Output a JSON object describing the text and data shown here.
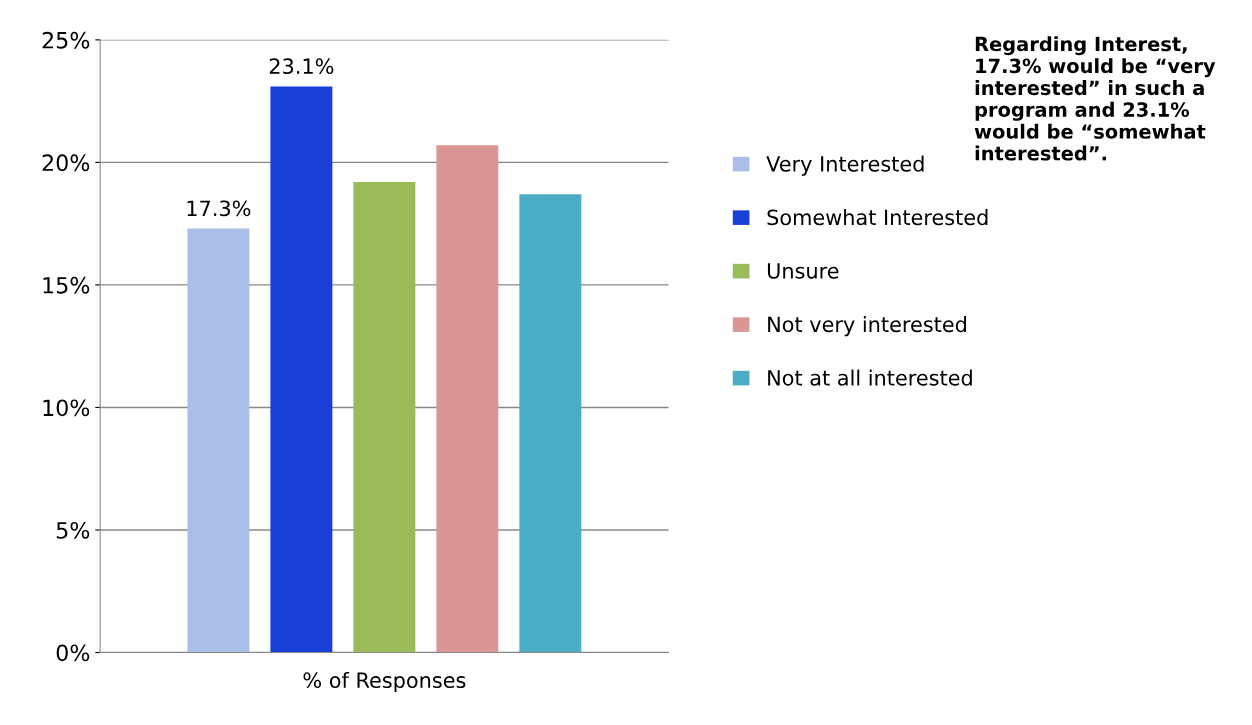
{
  "chart_data": {
    "type": "bar",
    "categories": [
      "% of Responses"
    ],
    "series": [
      {
        "name": "Very Interested",
        "color": "#a9bfe8",
        "values": [
          17.3
        ],
        "value_labels": [
          "17.3%"
        ]
      },
      {
        "name": "Somewhat Interested",
        "color": "#1a3fd6",
        "values": [
          23.1
        ],
        "value_labels": [
          "23.1%"
        ]
      },
      {
        "name": "Unsure",
        "color": "#9bbb59",
        "values": [
          19.2
        ]
      },
      {
        "name": "Not very interested",
        "color": "#d99694",
        "values": [
          20.7
        ]
      },
      {
        "name": "Not at all interested",
        "color": "#4bacc6",
        "values": [
          18.7
        ]
      }
    ],
    "ylim": [
      0,
      25
    ],
    "yticks": [
      {
        "value": 0,
        "label": "0%"
      },
      {
        "value": 5,
        "label": "5%"
      },
      {
        "value": 10,
        "label": "10%"
      },
      {
        "value": 15,
        "label": "15%"
      },
      {
        "value": 20,
        "label": "20%"
      },
      {
        "value": 25,
        "label": "25%"
      }
    ],
    "grid": "y",
    "legend": "right",
    "annotations": [
      "Regarding Interest, 17.3% would be “very interested” in such a program and 23.1% would be “somewhat interested”."
    ]
  }
}
